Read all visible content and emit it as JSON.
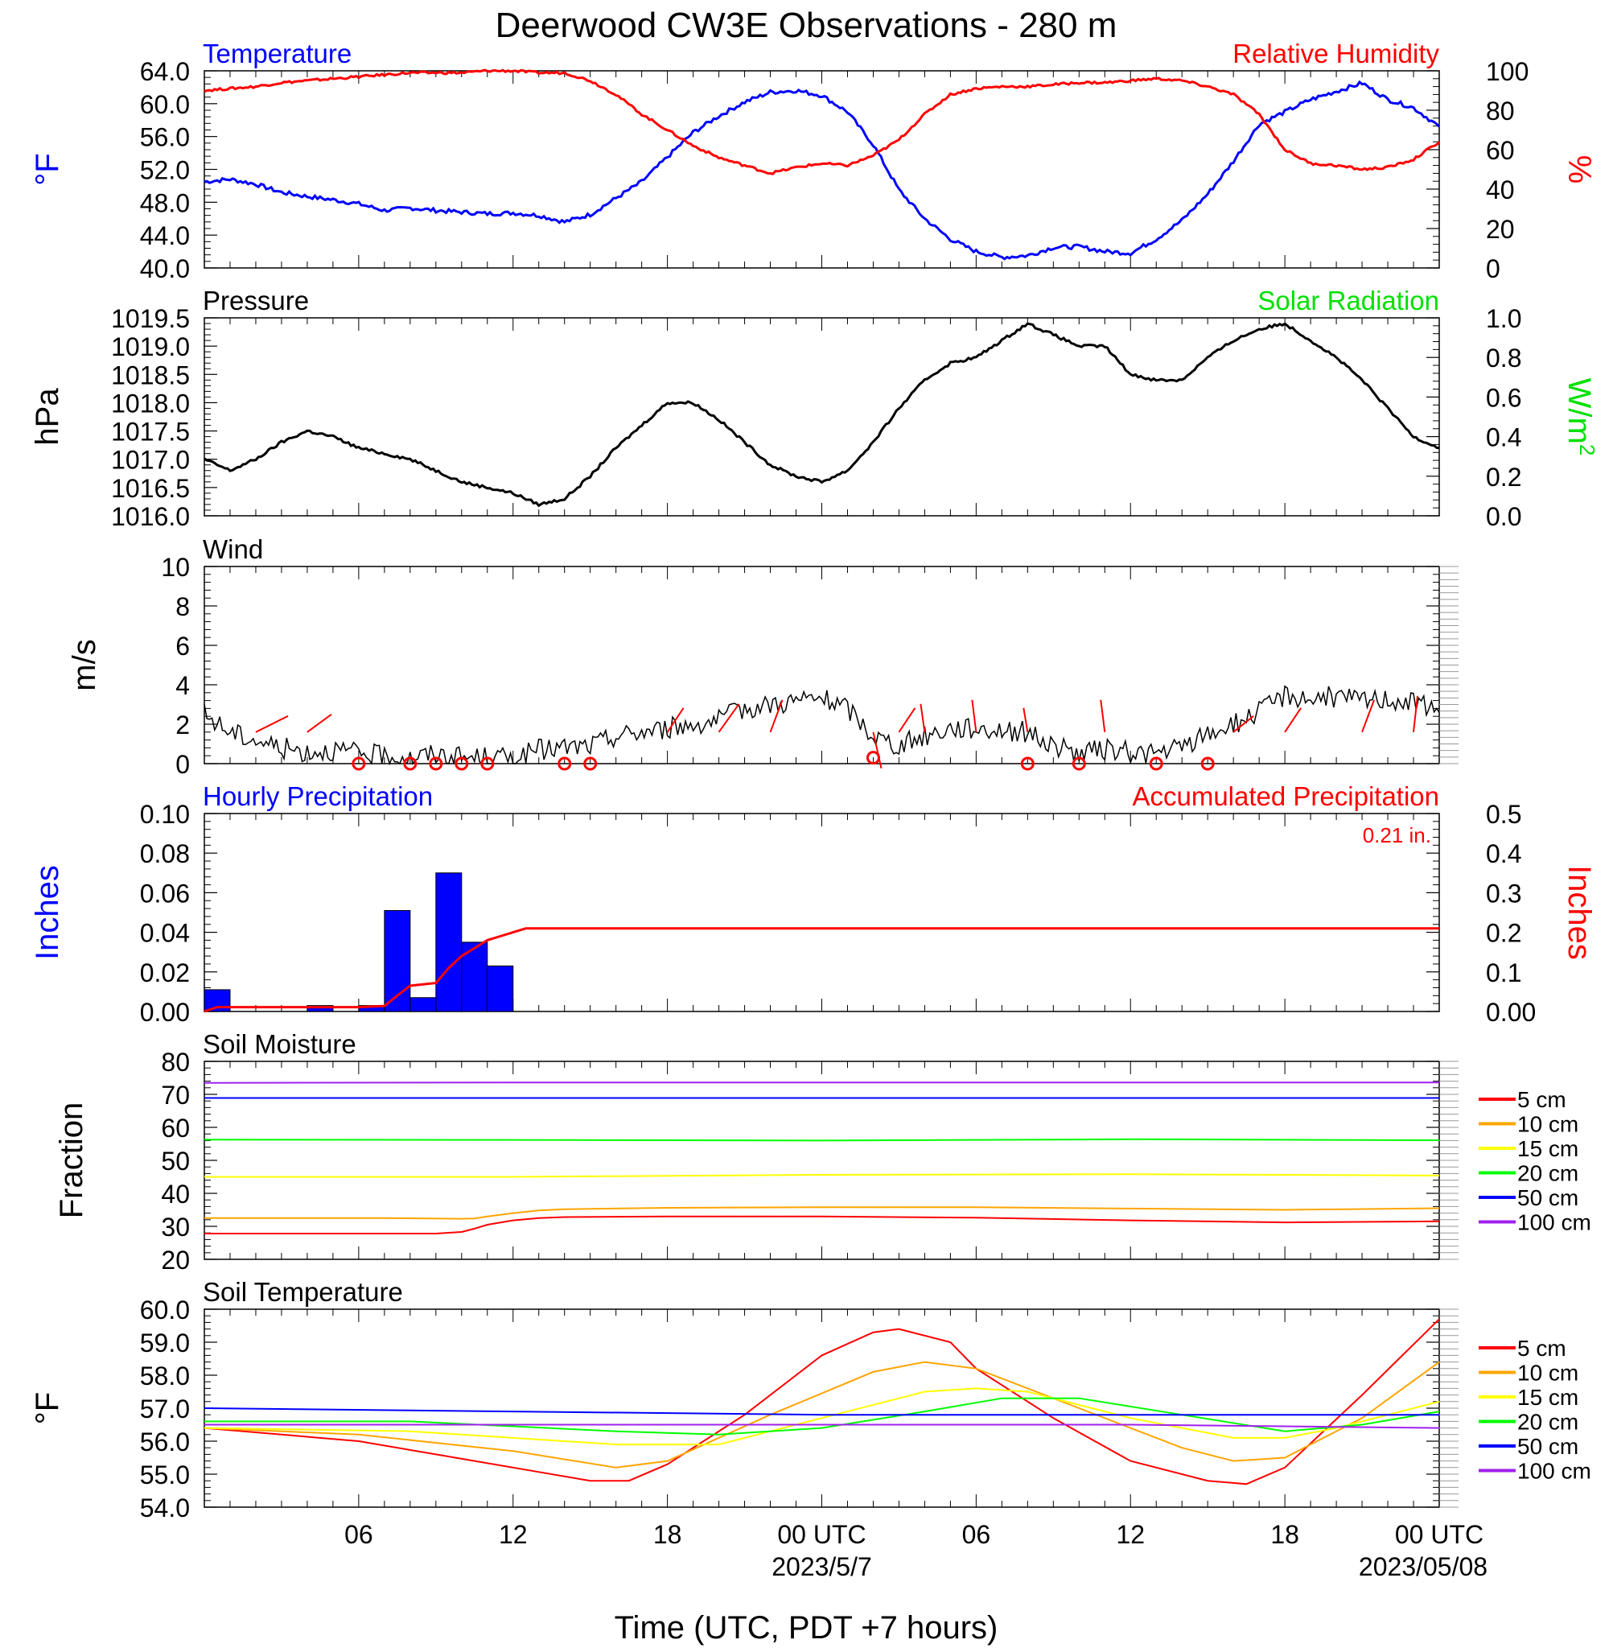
{
  "title": "Deerwood CW3E Observations - 280 m",
  "xlabel": "Time (UTC, PDT +7 hours)",
  "x_ticks": [
    "06",
    "12",
    "18",
    "00 UTC",
    "06",
    "12",
    "18",
    "00 UTC"
  ],
  "x_dates": [
    "2023/5/7",
    "2023/05/08"
  ],
  "chart_data": [
    {
      "type": "line",
      "panel": "temperature-rh",
      "x_unit": "hours since 2023-05-06 00 UTC",
      "title_left": "Temperature",
      "title_right": "Relative Humidity",
      "ylabel_left": "°F",
      "ylabel_right": "%",
      "ylim_left": [
        40,
        64
      ],
      "ylim_right": [
        0,
        100
      ],
      "yticks_left": [
        "40.0",
        "44.0",
        "48.0",
        "52.0",
        "56.0",
        "60.0",
        "64.0"
      ],
      "yticks_right": [
        "0",
        "20",
        "40",
        "60",
        "80",
        "100"
      ],
      "series": [
        {
          "name": "Temperature",
          "color": "#0000ff",
          "axis": "left",
          "x": [
            0,
            1,
            2,
            3,
            4,
            5,
            6,
            7,
            8,
            9,
            10,
            11,
            12,
            13,
            14,
            15,
            16,
            17,
            18,
            19,
            20,
            21,
            22,
            23,
            24,
            25,
            26,
            27,
            28,
            29,
            30,
            31,
            32,
            33,
            34,
            35,
            36,
            37,
            38,
            39,
            40,
            41,
            42,
            43,
            44,
            45,
            46,
            47,
            48
          ],
          "values": [
            50.5,
            50.8,
            50.2,
            49.2,
            48.7,
            48.3,
            47.8,
            47.0,
            47.3,
            47.0,
            46.8,
            46.6,
            46.7,
            46.4,
            45.6,
            46.5,
            48.5,
            50.5,
            53.5,
            56.5,
            58.5,
            60.2,
            61.4,
            61.6,
            61.0,
            59.0,
            55.0,
            49.5,
            46.0,
            43.5,
            42.0,
            41.3,
            41.5,
            42.5,
            42.6,
            42.0,
            41.8,
            43.5,
            45.8,
            49.0,
            53.0,
            57.5,
            59.0,
            60.5,
            61.5,
            62.5,
            60.5,
            59.5,
            57.2
          ]
        },
        {
          "name": "Relative Humidity",
          "color": "#ff0000",
          "axis": "right",
          "x": [
            0,
            1,
            2,
            3,
            4,
            5,
            6,
            7,
            8,
            9,
            10,
            11,
            12,
            13,
            14,
            15,
            16,
            17,
            18,
            19,
            20,
            21,
            22,
            23,
            24,
            25,
            26,
            27,
            28,
            29,
            30,
            31,
            32,
            33,
            34,
            35,
            36,
            37,
            38,
            39,
            40,
            41,
            42,
            43,
            44,
            45,
            46,
            47,
            48
          ],
          "values": [
            90,
            91,
            92,
            94,
            95,
            96,
            97,
            98,
            99,
            99,
            99,
            100,
            100,
            99,
            99,
            95,
            88,
            78,
            70,
            62,
            56,
            52,
            48,
            51,
            53,
            52,
            57,
            65,
            78,
            88,
            91,
            92,
            92,
            93,
            94,
            94,
            95,
            96,
            95,
            92,
            88,
            78,
            60,
            53,
            52,
            50,
            51,
            55,
            64
          ]
        }
      ]
    },
    {
      "type": "line",
      "panel": "pressure-solar",
      "x_unit": "hours since 2023-05-06 00 UTC",
      "title_left": "Pressure",
      "title_right": "Solar Radiation",
      "ylabel_left": "hPa",
      "ylabel_right": "W/m2",
      "ylim_left": [
        1016.0,
        1019.5
      ],
      "ylim_right": [
        0.0,
        1.0
      ],
      "yticks_left": [
        "1016.0",
        "1016.5",
        "1017.0",
        "1017.5",
        "1018.0",
        "1018.5",
        "1019.0",
        "1019.5"
      ],
      "yticks_right": [
        "0.0",
        "0.2",
        "0.4",
        "0.6",
        "0.8",
        "1.0"
      ],
      "series": [
        {
          "name": "Pressure",
          "color": "#000000",
          "axis": "left",
          "x": [
            0,
            1,
            2,
            3,
            4,
            5,
            6,
            7,
            8,
            9,
            10,
            11,
            12,
            13,
            14,
            15,
            16,
            17,
            18,
            19,
            20,
            21,
            22,
            23,
            24,
            25,
            26,
            27,
            28,
            29,
            30,
            31,
            32,
            33,
            34,
            35,
            36,
            37,
            38,
            39,
            40,
            41,
            42,
            43,
            44,
            45,
            46,
            47,
            48
          ],
          "values": [
            1017.0,
            1016.8,
            1017.0,
            1017.3,
            1017.5,
            1017.4,
            1017.2,
            1017.1,
            1017.0,
            1016.8,
            1016.6,
            1016.5,
            1016.4,
            1016.2,
            1016.3,
            1016.7,
            1017.2,
            1017.6,
            1018.0,
            1018.0,
            1017.7,
            1017.3,
            1016.9,
            1016.7,
            1016.6,
            1016.8,
            1017.3,
            1017.9,
            1018.4,
            1018.7,
            1018.8,
            1019.1,
            1019.4,
            1019.2,
            1019.0,
            1019.0,
            1018.5,
            1018.4,
            1018.4,
            1018.8,
            1019.1,
            1019.3,
            1019.4,
            1019.1,
            1018.8,
            1018.4,
            1017.9,
            1017.4,
            1017.2
          ]
        }
      ]
    },
    {
      "type": "line",
      "panel": "wind",
      "x_unit": "hours since 2023-05-06 00 UTC",
      "title_left": "Wind",
      "ylabel_left": "m/s",
      "ylim_left": [
        0,
        10
      ],
      "yticks_left": [
        "0",
        "2",
        "4",
        "6",
        "8",
        "10"
      ],
      "series": [
        {
          "name": "Wind speed",
          "color": "#000000",
          "axis": "left",
          "x": [
            0,
            1,
            2,
            3,
            4,
            5,
            6,
            7,
            8,
            9,
            10,
            11,
            12,
            13,
            14,
            15,
            16,
            17,
            18,
            19,
            20,
            21,
            22,
            23,
            24,
            25,
            26,
            27,
            28,
            29,
            30,
            31,
            32,
            33,
            34,
            35,
            36,
            37,
            38,
            39,
            40,
            41,
            42,
            43,
            44,
            45,
            46,
            47,
            48
          ],
          "values": [
            2.5,
            1.6,
            1.2,
            0.8,
            0.6,
            0.7,
            0.5,
            0.4,
            0.3,
            0.5,
            0.3,
            0.3,
            0.3,
            0.7,
            0.8,
            0.9,
            1.4,
            1.6,
            1.8,
            2.0,
            2.2,
            2.8,
            3.0,
            3.2,
            3.3,
            2.8,
            1.4,
            0.9,
            1.4,
            1.8,
            1.8,
            1.7,
            1.6,
            0.9,
            0.5,
            0.7,
            0.6,
            0.5,
            0.8,
            1.5,
            2.0,
            2.6,
            3.5,
            3.3,
            3.4,
            3.2,
            3.3,
            3.1,
            2.6
          ]
        },
        {
          "name": "Calm (wind direction circles)",
          "color": "#ff0000",
          "x": [
            6,
            8,
            9,
            10,
            11,
            14,
            15,
            26,
            32,
            34,
            37,
            39
          ],
          "values": [
            0,
            0,
            0,
            0,
            0,
            0,
            0,
            0.3,
            0,
            0,
            0,
            0
          ]
        }
      ]
    },
    {
      "type": "bar",
      "panel": "precipitation",
      "x_unit": "hours since 2023-05-06 00 UTC",
      "title_left": "Hourly Precipitation",
      "title_right": "Accumulated Precipitation",
      "annotation": "0.21 in.",
      "ylabel_left": "Inches",
      "ylabel_right": "Inches",
      "ylim_left": [
        0.0,
        0.1
      ],
      "ylim_right": [
        0.0,
        0.5
      ],
      "yticks_left": [
        "0.00",
        "0.02",
        "0.04",
        "0.06",
        "0.08",
        "0.10"
      ],
      "yticks_right": [
        "0.00",
        "0.1",
        "0.2",
        "0.3",
        "0.4",
        "0.5"
      ],
      "series": [
        {
          "name": "Hourly Precipitation",
          "color": "#0000ff",
          "axis": "left",
          "x": [
            0,
            4,
            6,
            7,
            8,
            9,
            10,
            11,
            12
          ],
          "values": [
            0.011,
            0.003,
            0.003,
            0.051,
            0.007,
            0.07,
            0.035,
            0.023,
            0.0
          ]
        },
        {
          "name": "Accumulated Precipitation",
          "color": "#ff0000",
          "axis": "right",
          "x": [
            0,
            0.5,
            1,
            4,
            6,
            7,
            7.5,
            8,
            9,
            9.5,
            10,
            10.5,
            11,
            11.5,
            12,
            12.5,
            48
          ],
          "values": [
            0.0,
            0.011,
            0.011,
            0.011,
            0.011,
            0.014,
            0.04,
            0.065,
            0.072,
            0.11,
            0.14,
            0.16,
            0.18,
            0.19,
            0.2,
            0.21,
            0.21
          ]
        }
      ]
    },
    {
      "type": "line",
      "panel": "soil-moisture",
      "x_unit": "hours since 2023-05-06 00 UTC",
      "title_left": "Soil Moisture",
      "ylabel_left": "Fraction",
      "ylim_left": [
        20,
        80
      ],
      "yticks_left": [
        "20",
        "30",
        "40",
        "50",
        "60",
        "70",
        "80"
      ],
      "series": [
        {
          "name": "5 cm",
          "color": "#ff0000",
          "x": [
            0,
            7,
            9,
            10,
            10.5,
            11,
            12,
            13,
            14,
            18,
            24,
            30,
            36,
            42,
            48
          ],
          "values": [
            27.8,
            27.8,
            27.8,
            28.3,
            29.3,
            30.5,
            31.8,
            32.5,
            32.8,
            33.0,
            33.0,
            32.6,
            31.8,
            31.2,
            31.5
          ]
        },
        {
          "name": "10 cm",
          "color": "#ffa500",
          "x": [
            0,
            7,
            10,
            10.5,
            11,
            12,
            13,
            14,
            18,
            24,
            30,
            36,
            42,
            48
          ],
          "values": [
            32.5,
            32.5,
            32.3,
            32.4,
            33.0,
            34.0,
            34.8,
            35.2,
            35.6,
            35.8,
            35.8,
            35.4,
            35.0,
            35.5
          ]
        },
        {
          "name": "15 cm",
          "color": "#ffff00",
          "x": [
            0,
            12,
            24,
            36,
            48
          ],
          "values": [
            45.0,
            45.0,
            45.6,
            45.8,
            45.4
          ]
        },
        {
          "name": "20 cm",
          "color": "#00ff00",
          "x": [
            0,
            12,
            24,
            36,
            48
          ],
          "values": [
            56.3,
            56.2,
            56.0,
            56.4,
            56.1
          ]
        },
        {
          "name": "50 cm",
          "color": "#0000ff",
          "x": [
            0,
            12,
            24,
            36,
            48
          ],
          "values": [
            68.9,
            68.9,
            68.9,
            68.9,
            68.9
          ]
        },
        {
          "name": "100 cm",
          "color": "#a020f0",
          "x": [
            0,
            12,
            24,
            36,
            48
          ],
          "values": [
            73.5,
            73.6,
            73.6,
            73.6,
            73.6
          ]
        }
      ]
    },
    {
      "type": "line",
      "panel": "soil-temperature",
      "x_unit": "hours since 2023-05-06 00 UTC",
      "title_left": "Soil Temperature",
      "ylabel_left": "°F",
      "ylim_left": [
        54.0,
        60.0
      ],
      "yticks_left": [
        "54.0",
        "55.0",
        "56.0",
        "57.0",
        "58.0",
        "59.0",
        "60.0"
      ],
      "series": [
        {
          "name": "5 cm",
          "color": "#ff0000",
          "x": [
            0,
            3,
            6,
            9,
            12,
            15,
            16.5,
            18,
            21,
            24,
            26,
            27,
            29,
            30,
            33,
            36,
            39,
            40.5,
            42,
            45,
            48
          ],
          "values": [
            56.4,
            56.2,
            56.0,
            55.6,
            55.2,
            54.8,
            54.8,
            55.3,
            56.8,
            58.6,
            59.3,
            59.4,
            59.0,
            58.2,
            56.7,
            55.4,
            54.8,
            54.7,
            55.2,
            57.4,
            59.7
          ]
        },
        {
          "name": "10 cm",
          "color": "#ffa500",
          "x": [
            0,
            6,
            12,
            16,
            18,
            22,
            26,
            28,
            30,
            34,
            38,
            40,
            42,
            45,
            48
          ],
          "values": [
            56.4,
            56.2,
            55.7,
            55.2,
            55.4,
            56.8,
            58.1,
            58.4,
            58.2,
            57.0,
            55.8,
            55.4,
            55.5,
            56.7,
            58.4
          ]
        },
        {
          "name": "15 cm",
          "color": "#ffff00",
          "x": [
            0,
            8,
            16,
            20,
            24,
            28,
            30,
            32,
            36,
            40,
            42,
            44,
            48
          ],
          "values": [
            56.4,
            56.3,
            55.9,
            55.9,
            56.7,
            57.5,
            57.6,
            57.5,
            56.7,
            56.1,
            56.1,
            56.4,
            57.2
          ]
        },
        {
          "name": "20 cm",
          "color": "#00ff00",
          "x": [
            0,
            8,
            16,
            20,
            24,
            28,
            31,
            34,
            38,
            42,
            45,
            48
          ],
          "values": [
            56.6,
            56.6,
            56.3,
            56.2,
            56.4,
            56.9,
            57.3,
            57.3,
            56.8,
            56.3,
            56.5,
            56.9
          ]
        },
        {
          "name": "50 cm",
          "color": "#0000ff",
          "x": [
            0,
            12,
            24,
            36,
            48
          ],
          "values": [
            57.0,
            56.9,
            56.8,
            56.8,
            56.8
          ]
        },
        {
          "name": "100 cm",
          "color": "#a020f0",
          "x": [
            0,
            12,
            24,
            36,
            48
          ],
          "values": [
            56.5,
            56.5,
            56.5,
            56.5,
            56.4
          ]
        }
      ]
    }
  ]
}
